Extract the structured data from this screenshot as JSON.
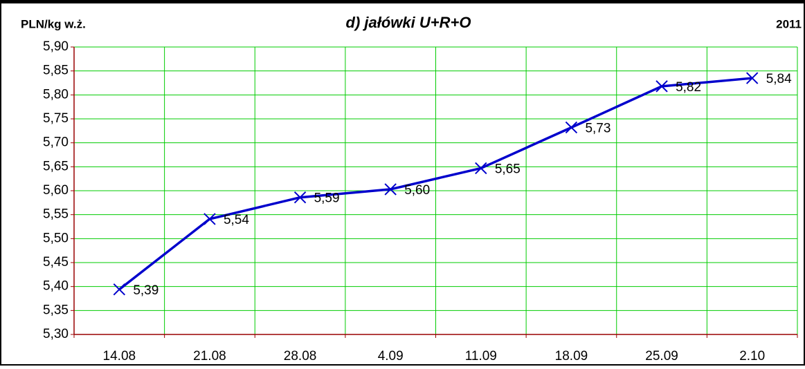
{
  "chart_data": {
    "type": "line",
    "title": "d) jałówki U+R+O",
    "y_label": "PLN/kg w.ż.",
    "year": "2011",
    "categories": [
      "14.08",
      "21.08",
      "28.08",
      "4.09",
      "11.09",
      "18.09",
      "25.09",
      "2.10"
    ],
    "series": [
      {
        "name": "jałówki U+R+O",
        "color": "#0000cc",
        "values": [
          5.394,
          5.541,
          5.586,
          5.603,
          5.647,
          5.732,
          5.818,
          5.835
        ],
        "value_labels": [
          "5,39",
          "5,54",
          "5,59",
          "5,60",
          "5,65",
          "5,73",
          "5,82",
          "5,84"
        ]
      }
    ],
    "ylim": [
      5.3,
      5.9
    ],
    "yticks": [
      {
        "value": 5.3,
        "label": "5,30"
      },
      {
        "value": 5.35,
        "label": "5,35"
      },
      {
        "value": 5.4,
        "label": "5,40"
      },
      {
        "value": 5.45,
        "label": "5,45"
      },
      {
        "value": 5.5,
        "label": "5,50"
      },
      {
        "value": 5.55,
        "label": "5,55"
      },
      {
        "value": 5.6,
        "label": "5,60"
      },
      {
        "value": 5.65,
        "label": "5,65"
      },
      {
        "value": 5.7,
        "label": "5,70"
      },
      {
        "value": 5.75,
        "label": "5,75"
      },
      {
        "value": 5.8,
        "label": "5,80"
      },
      {
        "value": 5.85,
        "label": "5,85"
      },
      {
        "value": 5.9,
        "label": "5,90"
      }
    ],
    "grid": true,
    "grid_color": "#00cc00",
    "axis_color": "#990000"
  }
}
